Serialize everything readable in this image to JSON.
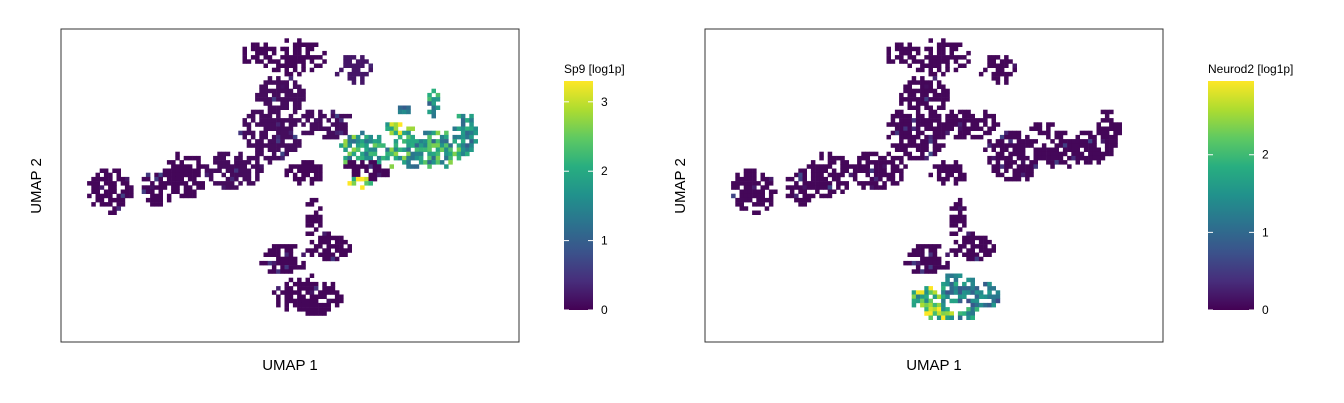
{
  "chart_data": [
    {
      "type": "heatmap",
      "subtype": "umap-hexbin-feature-plot",
      "gene": "Sp9",
      "xlabel": "UMAP 1",
      "ylabel": "UMAP 2",
      "colorbar": {
        "title": "Sp9 [log1p]",
        "colormap": "viridis",
        "ticks": [
          0,
          1,
          2,
          3
        ],
        "range": [
          0,
          3.3
        ]
      },
      "regions": [
        {
          "x": 0.4,
          "y": 0.55,
          "rx": 0.55,
          "ry": 0.45,
          "value": 0.05
        },
        {
          "x": 1.55,
          "y": 0.6,
          "rx": 0.4,
          "ry": 0.35,
          "value": 0.05
        },
        {
          "x": 2.2,
          "y": 0.85,
          "rx": 0.55,
          "ry": 0.45,
          "value": 0.05
        },
        {
          "x": 3.4,
          "y": 0.95,
          "rx": 0.7,
          "ry": 0.4,
          "value": 0.1
        },
        {
          "x": 5.1,
          "y": 0.9,
          "rx": 0.45,
          "ry": 0.25,
          "value": 0.05
        },
        {
          "x": 6.6,
          "y": 1.0,
          "rx": 0.6,
          "ry": 0.3,
          "value": 0.05
        },
        {
          "x": 4.3,
          "y": 1.65,
          "rx": 0.75,
          "ry": 0.55,
          "value": 0.1
        },
        {
          "x": 4.5,
          "y": 2.4,
          "rx": 0.6,
          "ry": 0.4,
          "value": 0.1
        },
        {
          "x": 4.9,
          "y": 3.15,
          "rx": 0.75,
          "ry": 0.35,
          "value": 0.05
        },
        {
          "x": 4.0,
          "y": 3.2,
          "rx": 0.5,
          "ry": 0.25,
          "value": 0.05
        },
        {
          "x": 6.3,
          "y": 2.9,
          "rx": 0.45,
          "ry": 0.3,
          "value": 0.2
        },
        {
          "x": 5.6,
          "y": 1.85,
          "rx": 0.7,
          "ry": 0.3,
          "value": 0.1
        },
        {
          "x": 6.7,
          "y": 1.3,
          "rx": 0.8,
          "ry": 0.4,
          "value": 2.1
        },
        {
          "x": 8.0,
          "y": 1.35,
          "rx": 0.9,
          "ry": 0.4,
          "value": 2.0
        },
        {
          "x": 8.95,
          "y": 1.7,
          "rx": 0.3,
          "ry": 0.45,
          "value": 1.6
        },
        {
          "x": 6.45,
          "y": 0.75,
          "rx": 0.3,
          "ry": 0.15,
          "value": 3.0
        },
        {
          "x": 7.35,
          "y": 1.75,
          "rx": 0.35,
          "ry": 0.15,
          "value": 2.6
        },
        {
          "x": 8.2,
          "y": 2.25,
          "rx": 0.2,
          "ry": 0.25,
          "value": 1.8
        },
        {
          "x": 7.5,
          "y": 2.1,
          "rx": 0.15,
          "ry": 0.1,
          "value": 1.2
        },
        {
          "x": 4.6,
          "y": -0.8,
          "rx": 0.55,
          "ry": 0.35,
          "value": 0.05
        },
        {
          "x": 5.7,
          "y": -0.55,
          "rx": 0.55,
          "ry": 0.3,
          "value": 0.05
        },
        {
          "x": 5.2,
          "y": -1.5,
          "rx": 0.85,
          "ry": 0.4,
          "value": 0.05
        },
        {
          "x": 5.3,
          "y": 0.0,
          "rx": 0.2,
          "ry": 0.45,
          "value": 0.05
        }
      ]
    },
    {
      "type": "heatmap",
      "subtype": "umap-hexbin-feature-plot",
      "gene": "Neurod2",
      "xlabel": "UMAP 1",
      "ylabel": "UMAP 2",
      "colorbar": {
        "title": "Neurod2 [log1p]",
        "colormap": "viridis",
        "ticks": [
          0,
          1,
          2
        ],
        "range": [
          0,
          2.95
        ]
      },
      "regions": [
        {
          "x": 0.4,
          "y": 0.55,
          "rx": 0.55,
          "ry": 0.45,
          "value": 0.05
        },
        {
          "x": 1.55,
          "y": 0.6,
          "rx": 0.4,
          "ry": 0.35,
          "value": 0.05
        },
        {
          "x": 2.2,
          "y": 0.85,
          "rx": 0.55,
          "ry": 0.45,
          "value": 0.05
        },
        {
          "x": 3.4,
          "y": 0.95,
          "rx": 0.7,
          "ry": 0.4,
          "value": 0.05
        },
        {
          "x": 5.1,
          "y": 0.9,
          "rx": 0.45,
          "ry": 0.25,
          "value": 0.05
        },
        {
          "x": 6.6,
          "y": 1.0,
          "rx": 0.6,
          "ry": 0.3,
          "value": 0.05
        },
        {
          "x": 4.3,
          "y": 1.65,
          "rx": 0.75,
          "ry": 0.55,
          "value": 0.05
        },
        {
          "x": 4.5,
          "y": 2.4,
          "rx": 0.6,
          "ry": 0.4,
          "value": 0.05
        },
        {
          "x": 4.9,
          "y": 3.15,
          "rx": 0.75,
          "ry": 0.35,
          "value": 0.05
        },
        {
          "x": 4.0,
          "y": 3.2,
          "rx": 0.5,
          "ry": 0.25,
          "value": 0.05
        },
        {
          "x": 6.3,
          "y": 2.9,
          "rx": 0.45,
          "ry": 0.3,
          "value": 0.05
        },
        {
          "x": 5.6,
          "y": 1.85,
          "rx": 0.7,
          "ry": 0.3,
          "value": 0.05
        },
        {
          "x": 6.7,
          "y": 1.3,
          "rx": 0.8,
          "ry": 0.4,
          "value": 0.05
        },
        {
          "x": 8.0,
          "y": 1.35,
          "rx": 0.9,
          "ry": 0.4,
          "value": 0.05
        },
        {
          "x": 8.95,
          "y": 1.7,
          "rx": 0.3,
          "ry": 0.45,
          "value": 0.05
        },
        {
          "x": 7.35,
          "y": 1.75,
          "rx": 0.35,
          "ry": 0.15,
          "value": 0.05
        },
        {
          "x": 4.6,
          "y": -0.8,
          "rx": 0.55,
          "ry": 0.35,
          "value": 0.05
        },
        {
          "x": 5.7,
          "y": -0.55,
          "rx": 0.55,
          "ry": 0.3,
          "value": 0.05
        },
        {
          "x": 5.3,
          "y": 0.0,
          "rx": 0.2,
          "ry": 0.45,
          "value": 0.05
        },
        {
          "x": 5.3,
          "y": -1.35,
          "rx": 0.45,
          "ry": 0.3,
          "value": 1.4
        },
        {
          "x": 4.65,
          "y": -1.55,
          "rx": 0.45,
          "ry": 0.25,
          "value": 2.2
        },
        {
          "x": 5.9,
          "y": -1.5,
          "rx": 0.5,
          "ry": 0.25,
          "value": 1.2
        },
        {
          "x": 4.9,
          "y": -1.85,
          "rx": 0.35,
          "ry": 0.15,
          "value": 2.6
        },
        {
          "x": 5.6,
          "y": -1.85,
          "rx": 0.3,
          "ry": 0.15,
          "value": 1.5
        }
      ]
    }
  ]
}
